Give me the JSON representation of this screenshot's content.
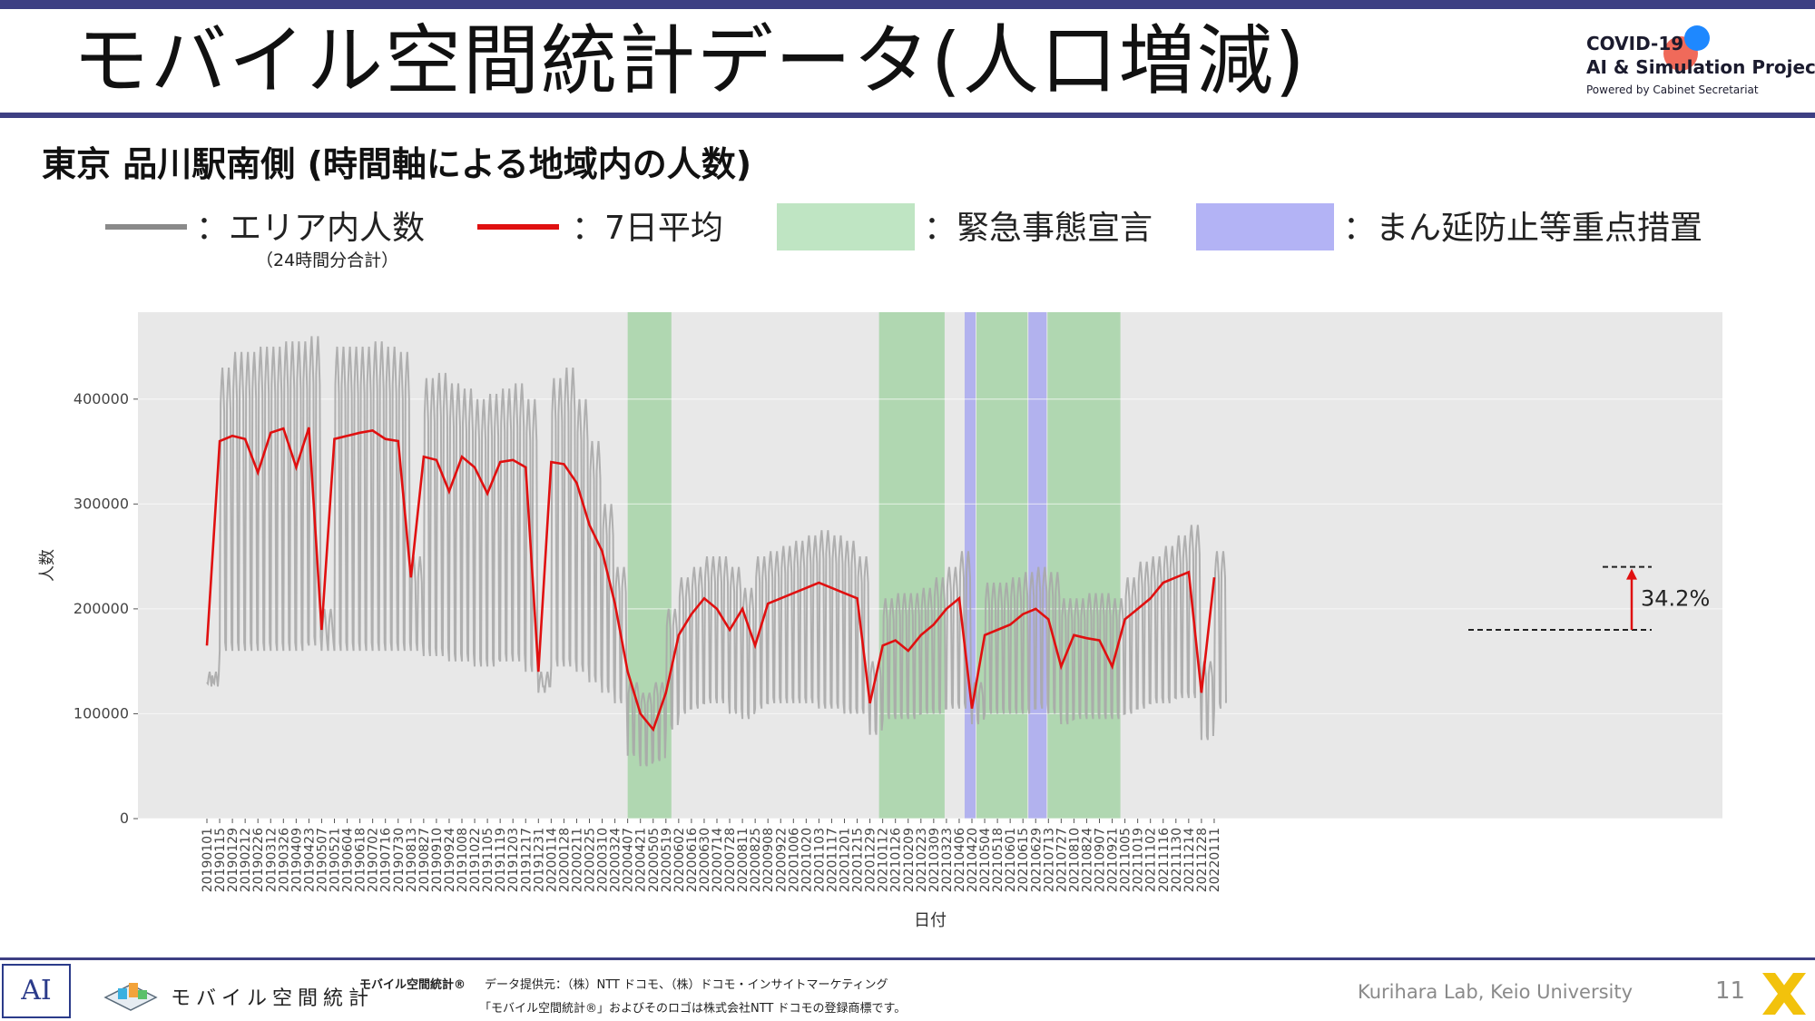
{
  "header": {
    "title": "モバイル空間統計データ(人口増減)",
    "brand_line1": "COVID-19",
    "brand_line2": "AI & Simulation Project",
    "brand_line3": "Powered by Cabinet Secretariat"
  },
  "subtitle": "東京 品川駅南側 (時間軸による地域内の人数)",
  "legend": {
    "gray_label": "：エリア内人数",
    "gray_sublabel": "（24時間分合計）",
    "red_label": "：7日平均",
    "green_label": "：緊急事態宣言",
    "purple_label": "：まん延防止等重点措置"
  },
  "colors": {
    "daily": "#a9a9a9",
    "avg": "#e01010",
    "emergency": "#bfe5c3",
    "emergency_band": "#a6d4a7",
    "semi_emergency": "#a8a8ee",
    "panel_bg": "#e8e8e8",
    "accent": "#3d3f83"
  },
  "chart_data": {
    "type": "line",
    "xlabel": "日付",
    "ylabel": "人数",
    "ylim": [
      0,
      450000
    ],
    "yticks": [
      0,
      100000,
      200000,
      300000,
      400000
    ],
    "ytick_labels": [
      "0",
      "100000",
      "200000",
      "300000",
      "400000"
    ],
    "x_tick_labels": [
      "20190101",
      "20190115",
      "20190129",
      "20190212",
      "20190226",
      "20190312",
      "20190326",
      "20190409",
      "20190423",
      "20190507",
      "20190521",
      "20190604",
      "20190618",
      "20190702",
      "20190716",
      "20190730",
      "20190813",
      "20190827",
      "20190910",
      "20190924",
      "20191008",
      "20191022",
      "20191105",
      "20191119",
      "20191203",
      "20191217",
      "20191231",
      "20200114",
      "20200128",
      "20200211",
      "20200225",
      "20200310",
      "20200324",
      "20200407",
      "20200421",
      "20200505",
      "20200519",
      "20200602",
      "20200616",
      "20200630",
      "20200714",
      "20200728",
      "20200811",
      "20200825",
      "20200908",
      "20200922",
      "20201006",
      "20201020",
      "20201103",
      "20201117",
      "20201201",
      "20201215",
      "20201229",
      "20210112",
      "20210126",
      "20210209",
      "20210223",
      "20210309",
      "20210323",
      "20210406",
      "20210420",
      "20210504",
      "20210518",
      "20210601",
      "20210615",
      "20210629",
      "20210713",
      "20210727",
      "20210810",
      "20210824",
      "20210907",
      "20210921",
      "20211005",
      "20211019",
      "20211102",
      "20211116",
      "20211130",
      "20211214",
      "20211228",
      "20220111"
    ],
    "x_tick_step_days": 14,
    "series": [
      {
        "name": "：エリア内人数",
        "kind": "daily",
        "note_weekday_range": "weekdays approx 380000-460000 in 2019, weekends approx 150000-170000",
        "weekly_peak_by_tick": [
          140000,
          430000,
          445000,
          445000,
          450000,
          450000,
          455000,
          455000,
          460000,
          200000,
          450000,
          450000,
          450000,
          455000,
          450000,
          445000,
          250000,
          420000,
          425000,
          415000,
          410000,
          400000,
          405000,
          410000,
          415000,
          400000,
          140000,
          420000,
          430000,
          400000,
          360000,
          300000,
          240000,
          130000,
          120000,
          130000,
          200000,
          230000,
          240000,
          250000,
          250000,
          240000,
          220000,
          250000,
          255000,
          260000,
          265000,
          270000,
          275000,
          270000,
          265000,
          250000,
          150000,
          210000,
          215000,
          215000,
          220000,
          230000,
          240000,
          255000,
          130000,
          225000,
          225000,
          230000,
          235000,
          240000,
          235000,
          210000,
          210000,
          215000,
          215000,
          210000,
          230000,
          245000,
          250000,
          260000,
          270000,
          280000,
          150000,
          255000
        ],
        "weekly_trough_by_tick": [
          130000,
          160000,
          160000,
          160000,
          160000,
          160000,
          160000,
          160000,
          165000,
          160000,
          160000,
          160000,
          160000,
          160000,
          160000,
          160000,
          160000,
          155000,
          155000,
          150000,
          150000,
          145000,
          145000,
          150000,
          150000,
          140000,
          120000,
          145000,
          145000,
          140000,
          130000,
          120000,
          110000,
          60000,
          50000,
          55000,
          85000,
          100000,
          105000,
          110000,
          110000,
          100000,
          95000,
          105000,
          110000,
          110000,
          110000,
          110000,
          105000,
          105000,
          100000,
          100000,
          80000,
          95000,
          95000,
          95000,
          100000,
          100000,
          105000,
          105000,
          90000,
          100000,
          100000,
          100000,
          100000,
          105000,
          100000,
          90000,
          95000,
          95000,
          95000,
          95000,
          100000,
          105000,
          110000,
          110000,
          115000,
          115000,
          75000,
          105000
        ]
      },
      {
        "name": "：7日平均",
        "kind": "avg",
        "values_by_tick": [
          165000,
          360000,
          365000,
          362000,
          330000,
          368000,
          372000,
          335000,
          373000,
          180000,
          362000,
          365000,
          368000,
          370000,
          362000,
          360000,
          230000,
          345000,
          342000,
          312000,
          345000,
          335000,
          310000,
          340000,
          342000,
          335000,
          140000,
          340000,
          338000,
          320000,
          280000,
          255000,
          205000,
          140000,
          100000,
          85000,
          120000,
          175000,
          195000,
          210000,
          200000,
          180000,
          200000,
          165000,
          205000,
          210000,
          215000,
          220000,
          225000,
          220000,
          215000,
          210000,
          110000,
          165000,
          170000,
          160000,
          175000,
          185000,
          200000,
          210000,
          105000,
          175000,
          180000,
          185000,
          195000,
          200000,
          190000,
          145000,
          175000,
          172000,
          170000,
          145000,
          190000,
          200000,
          210000,
          225000,
          230000,
          235000,
          120000,
          230000
        ]
      }
    ],
    "shaded_regions": [
      {
        "label": "緊急事態宣言",
        "start": "20200407",
        "end": "20200525"
      },
      {
        "label": "緊急事態宣言",
        "start": "20210108",
        "end": "20210321"
      },
      {
        "label": "まん延防止等重点措置",
        "start": "20210412",
        "end": "20210424"
      },
      {
        "label": "緊急事態宣言",
        "start": "20210425",
        "end": "20210620"
      },
      {
        "label": "まん延防止等重点措置",
        "start": "20210621",
        "end": "20210711"
      },
      {
        "label": "緊急事態宣言",
        "start": "20210712",
        "end": "20210930"
      }
    ],
    "annotation": {
      "text": "34.2%",
      "from_value": 180000,
      "to_value": 240000
    }
  },
  "footer": {
    "logo_text": "AI",
    "mobile_text": "モバイル空間統計",
    "trademark_left": "モバイル空間統計®",
    "source": "データ提供元：（株）NTT ドコモ、（株）ドコモ・インサイトマーケティング",
    "registered": "「モバイル空間統計®」およびそのロゴは株式会社NTT ドコモの登録商標です。",
    "lab": "Kurihara Lab, Keio University",
    "page": "11"
  }
}
